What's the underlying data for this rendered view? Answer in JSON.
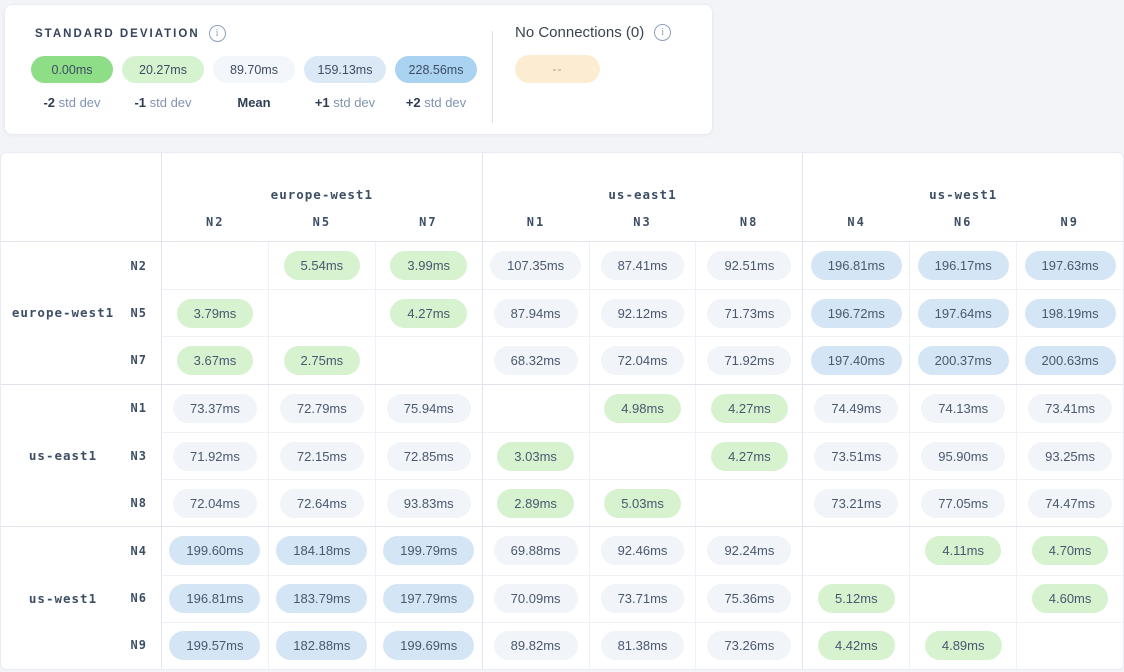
{
  "legend": {
    "title": "STANDARD DEVIATION",
    "pills": [
      {
        "value": "0.00ms",
        "color": "#8edd87",
        "label_bold": "-2",
        "label_rest": " std dev"
      },
      {
        "value": "20.27ms",
        "color": "#d6f3d0",
        "label_bold": "-1",
        "label_rest": " std dev"
      },
      {
        "value": "89.70ms",
        "color": "#f3f6fa",
        "label_bold": "Mean",
        "label_rest": ""
      },
      {
        "value": "159.13ms",
        "color": "#dbe9f7",
        "label_bold": "+1",
        "label_rest": " std dev"
      },
      {
        "value": "228.56ms",
        "color": "#a9d3f1",
        "label_bold": "+2",
        "label_rest": " std dev"
      }
    ]
  },
  "no_connections": {
    "title": "No Connections (0)",
    "pill_label": "--",
    "pill_color": "#fcecd1"
  },
  "matrix": {
    "column_groups": [
      {
        "region": "europe-west1",
        "nodes": [
          "N2",
          "N5",
          "N7"
        ]
      },
      {
        "region": "us-east1",
        "nodes": [
          "N1",
          "N3",
          "N8"
        ]
      },
      {
        "region": "us-west1",
        "nodes": [
          "N4",
          "N6",
          "N9"
        ]
      }
    ],
    "row_groups": [
      {
        "region": "europe-west1",
        "rows": [
          {
            "node": "N2",
            "values": [
              null,
              "5.54ms",
              "3.99ms",
              "107.35ms",
              "87.41ms",
              "92.51ms",
              "196.81ms",
              "196.17ms",
              "197.63ms"
            ]
          },
          {
            "node": "N5",
            "values": [
              "3.79ms",
              null,
              "4.27ms",
              "87.94ms",
              "92.12ms",
              "71.73ms",
              "196.72ms",
              "197.64ms",
              "198.19ms"
            ]
          },
          {
            "node": "N7",
            "values": [
              "3.67ms",
              "2.75ms",
              null,
              "68.32ms",
              "72.04ms",
              "71.92ms",
              "197.40ms",
              "200.37ms",
              "200.63ms"
            ]
          }
        ]
      },
      {
        "region": "us-east1",
        "rows": [
          {
            "node": "N1",
            "values": [
              "73.37ms",
              "72.79ms",
              "75.94ms",
              null,
              "4.98ms",
              "4.27ms",
              "74.49ms",
              "74.13ms",
              "73.41ms"
            ]
          },
          {
            "node": "N3",
            "values": [
              "71.92ms",
              "72.15ms",
              "72.85ms",
              "3.03ms",
              null,
              "4.27ms",
              "73.51ms",
              "95.90ms",
              "93.25ms"
            ]
          },
          {
            "node": "N8",
            "values": [
              "72.04ms",
              "72.64ms",
              "93.83ms",
              "2.89ms",
              "5.03ms",
              null,
              "73.21ms",
              "77.05ms",
              "74.47ms"
            ]
          }
        ]
      },
      {
        "region": "us-west1",
        "rows": [
          {
            "node": "N4",
            "values": [
              "199.60ms",
              "184.18ms",
              "199.79ms",
              "69.88ms",
              "92.46ms",
              "92.24ms",
              null,
              "4.11ms",
              "4.70ms"
            ]
          },
          {
            "node": "N6",
            "values": [
              "196.81ms",
              "183.79ms",
              "197.79ms",
              "70.09ms",
              "73.71ms",
              "75.36ms",
              "5.12ms",
              null,
              "4.60ms"
            ]
          },
          {
            "node": "N9",
            "values": [
              "199.57ms",
              "182.88ms",
              "199.69ms",
              "89.82ms",
              "81.38ms",
              "73.26ms",
              "4.42ms",
              "4.89ms",
              null
            ]
          }
        ]
      }
    ],
    "cell_colors": {
      "green": "#d6f2cf",
      "gray": "#f1f4f8",
      "blue": "#d4e6f5"
    },
    "thresholds": {
      "green_below_ms": 20,
      "blue_at_or_above_ms": 160
    }
  }
}
